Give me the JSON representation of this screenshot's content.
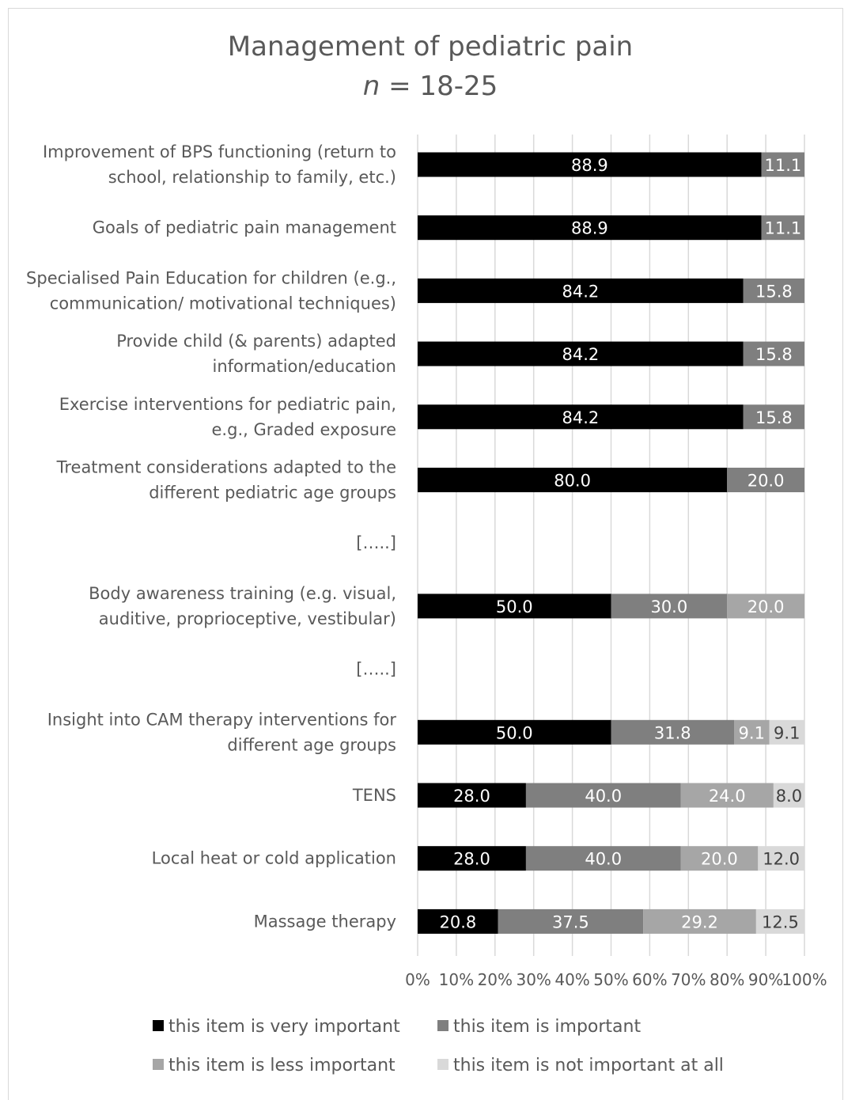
{
  "chart_data": {
    "type": "bar",
    "orientation": "horizontal-stacked-100",
    "title": "Management of pediatric pain",
    "subtitle_italic": "n",
    "subtitle_rest": " = 18-25",
    "categories": [
      [
        "Improvement of BPS functioning (return to",
        "school, relationship to family, etc.)"
      ],
      [
        "Goals of pediatric pain management"
      ],
      [
        "Specialised Pain Education for children (e.g.,",
        "communication/ motivational techniques)"
      ],
      [
        "Provide child (& parents) adapted",
        "information/education"
      ],
      [
        "Exercise interventions for pediatric pain,",
        "e.g., Graded exposure"
      ],
      [
        "Treatment considerations adapted to the",
        "different pediatric age groups"
      ],
      [
        "[…..]"
      ],
      [
        "Body awareness training (e.g. visual,",
        "auditive, proprioceptive, vestibular)"
      ],
      [
        "[…..]"
      ],
      [
        "Insight into CAM therapy interventions for",
        "different age groups"
      ],
      [
        "TENS"
      ],
      [
        "Local heat or cold application"
      ],
      [
        "Massage therapy"
      ]
    ],
    "series": [
      {
        "name": "this item is very important",
        "color": "#000000",
        "label_color": "#ffffff",
        "values": [
          88.9,
          88.9,
          84.2,
          84.2,
          84.2,
          80.0,
          null,
          50.0,
          null,
          50.0,
          28.0,
          28.0,
          20.8
        ]
      },
      {
        "name": "this item is important",
        "color": "#7f7f7f",
        "label_color": "#ffffff",
        "values": [
          11.1,
          11.1,
          15.8,
          15.8,
          15.8,
          20.0,
          null,
          30.0,
          null,
          31.8,
          40.0,
          40.0,
          37.5
        ]
      },
      {
        "name": "this item is less important",
        "color": "#a6a6a6",
        "label_color": "#ffffff",
        "values": [
          null,
          null,
          null,
          null,
          null,
          null,
          null,
          20.0,
          null,
          9.1,
          24.0,
          20.0,
          29.2
        ]
      },
      {
        "name": "this item is not important at all",
        "color": "#d9d9d9",
        "label_color": "#404040",
        "values": [
          null,
          null,
          null,
          null,
          null,
          null,
          null,
          null,
          null,
          9.1,
          8.0,
          12.0,
          12.5
        ]
      }
    ],
    "xlim": [
      0,
      100
    ],
    "xticks": [
      "0%",
      "10%",
      "20%",
      "30%",
      "40%",
      "50%",
      "60%",
      "70%",
      "80%",
      "90%",
      "100%"
    ],
    "grid": "vertical",
    "legend_position": "bottom"
  }
}
